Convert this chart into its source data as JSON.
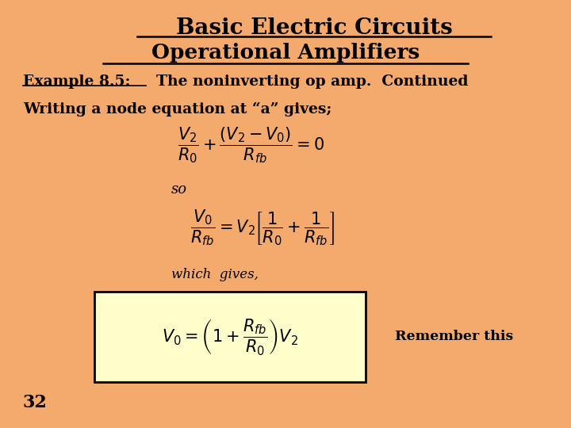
{
  "bg_color": "#F4A96D",
  "title1": "Basic Electric Circuits",
  "title2": "Operational Amplifiers",
  "example_label": "Example 8.5:",
  "example_text": "  The noninverting op amp.  Continued",
  "writing_text": "Writing a node equation at “a” gives;",
  "eq1": "$\\dfrac{V_2}{R_0} + \\dfrac{(V_2 - V_0)}{R_{fb}} = 0$",
  "so_text": "so",
  "eq2": "$\\dfrac{V_0}{R_{fb}} = V_2\\left[\\dfrac{1}{R_0} + \\dfrac{1}{R_{fb}}\\right]$",
  "which_text": "which  gives,",
  "eq3": "$V_0 = \\left(1 + \\dfrac{R_{fb}}{R_0}\\right)V_2$",
  "remember_text": "Remember this",
  "page_num": "32",
  "box_color": "#FFFFCC",
  "box_border": "#000000"
}
